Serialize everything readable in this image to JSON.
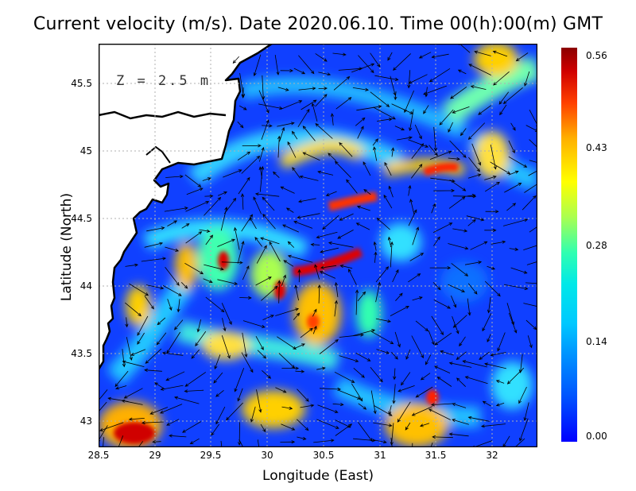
{
  "title": "Current velocity (m/s). Date 2020.06.10. Time 00(h):00(m) GMT",
  "depth_label": "Z = 2.5 m",
  "x_axis": {
    "label": "Longitude (East)",
    "ticks": [
      "28.5",
      "29",
      "29.5",
      "30",
      "30.5",
      "31",
      "31.5",
      "32"
    ]
  },
  "y_axis": {
    "label": "Latitude (North)",
    "ticks": [
      "45.5",
      "45",
      "44.5",
      "44",
      "43.5",
      "43"
    ]
  },
  "colorbar": {
    "ticks": [
      "0.56",
      "0.43",
      "0.28",
      "0.14",
      "0.00"
    ]
  },
  "map": {
    "lon_range": [
      28.5,
      32.4
    ],
    "lat_range": [
      42.8,
      45.8
    ],
    "grid": true,
    "colormap": [
      "#0000ff",
      "#00c8ff",
      "#30ffb0",
      "#ffff00",
      "#ff4000",
      "#8b0000"
    ],
    "land_color": "#ffffff",
    "coast_color": "#000000"
  }
}
